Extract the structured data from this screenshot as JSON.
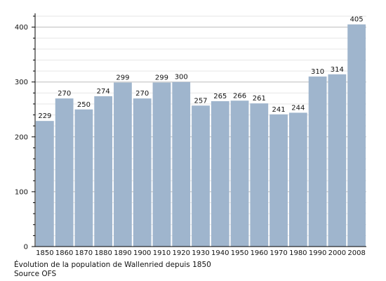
{
  "chart_data": {
    "type": "bar",
    "categories": [
      "1850",
      "1860",
      "1870",
      "1880",
      "1890",
      "1900",
      "1910",
      "1920",
      "1930",
      "1940",
      "1950",
      "1960",
      "1970",
      "1980",
      "1990",
      "2000",
      "2008"
    ],
    "values": [
      229,
      270,
      250,
      274,
      299,
      270,
      299,
      300,
      257,
      265,
      266,
      261,
      241,
      244,
      310,
      314,
      405
    ],
    "ylim": [
      0,
      420
    ],
    "yticks": [
      0,
      100,
      200,
      300,
      400
    ],
    "grid": true,
    "data_labels": true,
    "bar_color": "#9fb5cd",
    "axis_color": "#000000",
    "grid_color": "#cccccc"
  },
  "caption": {
    "line1": "Évolution de la population de Wallenried depuis 1850",
    "line2": "Source OFS"
  }
}
